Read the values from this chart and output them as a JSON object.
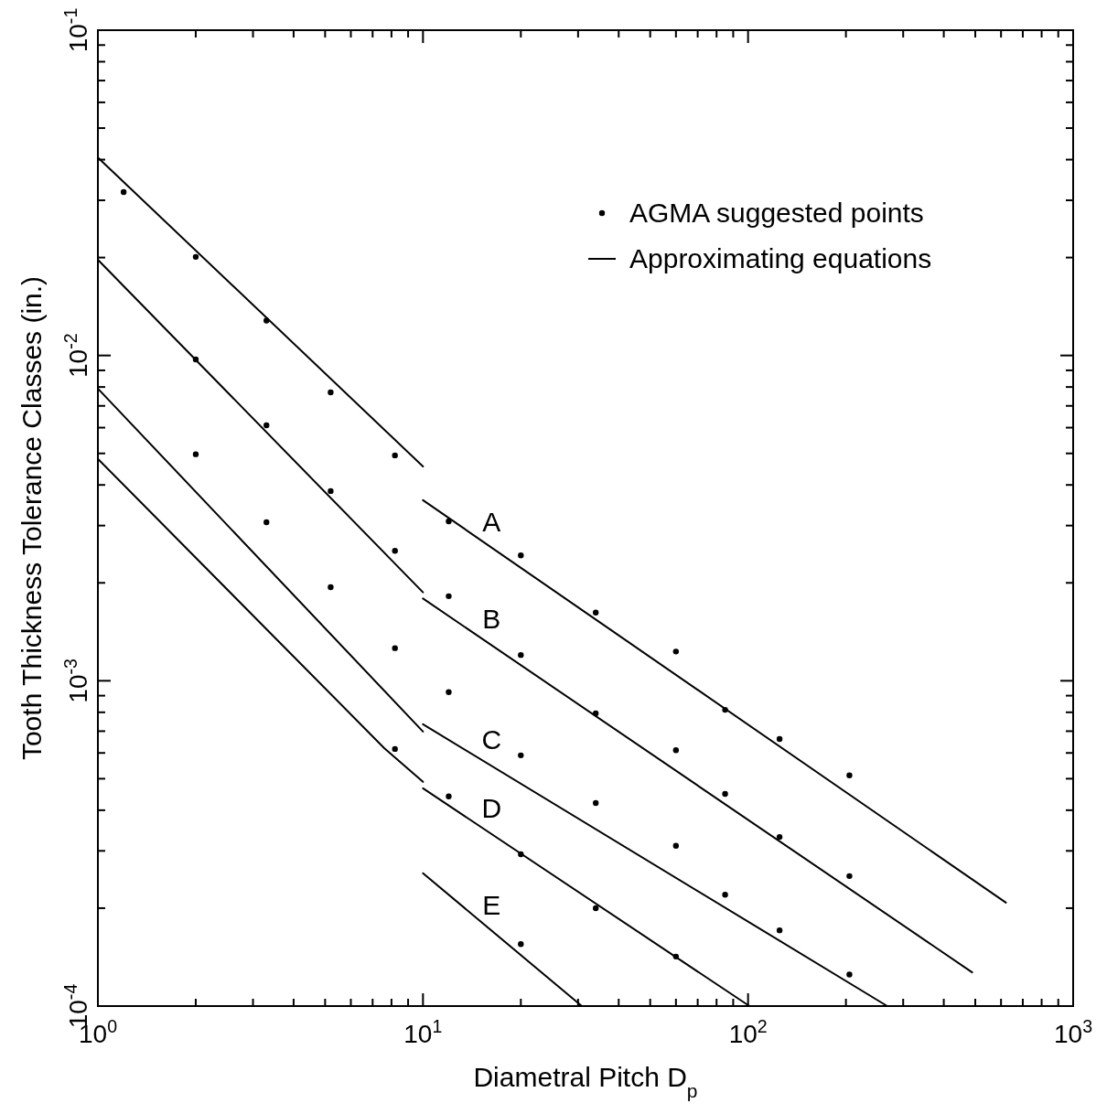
{
  "chart_data": {
    "type": "scatter",
    "xlabel": "Diametral Pitch D$_{p}$",
    "ylabel": "Tooth Thickness Tolerance Classes (in.)",
    "log": "xy",
    "grid": false,
    "legend": "top right",
    "xlim": [
      1,
      1000
    ],
    "ylim": [
      0.0001,
      0.1
    ],
    "xticks": [
      {
        "value": 1,
        "label": "10$^{0}$"
      },
      {
        "value": 2,
        "label": null
      },
      {
        "value": 3,
        "label": null
      },
      {
        "value": 4,
        "label": null
      },
      {
        "value": 5,
        "label": null
      },
      {
        "value": 6,
        "label": null
      },
      {
        "value": 7,
        "label": null
      },
      {
        "value": 8,
        "label": null
      },
      {
        "value": 9,
        "label": null
      },
      {
        "value": 10,
        "label": "10$^{1}$"
      },
      {
        "value": 20,
        "label": null
      },
      {
        "value": 30,
        "label": null
      },
      {
        "value": 40,
        "label": null
      },
      {
        "value": 50,
        "label": null
      },
      {
        "value": 60,
        "label": null
      },
      {
        "value": 70,
        "label": null
      },
      {
        "value": 80,
        "label": null
      },
      {
        "value": 90,
        "label": null
      },
      {
        "value": 100,
        "label": "10$^{2}$"
      },
      {
        "value": 200,
        "label": null
      },
      {
        "value": 300,
        "label": null
      },
      {
        "value": 400,
        "label": null
      },
      {
        "value": 500,
        "label": null
      },
      {
        "value": 600,
        "label": null
      },
      {
        "value": 700,
        "label": null
      },
      {
        "value": 800,
        "label": null
      },
      {
        "value": 900,
        "label": null
      },
      {
        "value": 1000,
        "label": "10$^{3}$"
      }
    ],
    "yticks": [
      {
        "value": 0.0001,
        "label": "10$^{-4}$"
      },
      {
        "value": 0.0002,
        "label": null
      },
      {
        "value": 0.0003,
        "label": null
      },
      {
        "value": 0.0004,
        "label": null
      },
      {
        "value": 0.0005,
        "label": null
      },
      {
        "value": 0.0006,
        "label": null
      },
      {
        "value": 0.0007,
        "label": null
      },
      {
        "value": 0.0008,
        "label": null
      },
      {
        "value": 0.0009,
        "label": null
      },
      {
        "value": 0.001,
        "label": "10$^{-3}$"
      },
      {
        "value": 0.002,
        "label": null
      },
      {
        "value": 0.003,
        "label": null
      },
      {
        "value": 0.004,
        "label": null
      },
      {
        "value": 0.005,
        "label": null
      },
      {
        "value": 0.006,
        "label": null
      },
      {
        "value": 0.007,
        "label": null
      },
      {
        "value": 0.008,
        "label": null
      },
      {
        "value": 0.009,
        "label": null
      },
      {
        "value": 0.01,
        "label": "10$^{-2}$"
      },
      {
        "value": 0.02,
        "label": null
      },
      {
        "value": 0.03,
        "label": null
      },
      {
        "value": 0.04,
        "label": null
      },
      {
        "value": 0.05,
        "label": null
      },
      {
        "value": 0.06,
        "label": null
      },
      {
        "value": 0.07,
        "label": null
      },
      {
        "value": 0.08,
        "label": null
      },
      {
        "value": 0.09,
        "label": null
      },
      {
        "value": 0.1,
        "label": "10$^{-1}$"
      }
    ],
    "series": [
      {
        "name": "AGMA suggested points",
        "marker": "circle",
        "color": "#000000",
        "x": [
          1.2,
          2,
          3.3,
          5.2,
          8.2,
          12,
          20,
          34,
          60,
          85,
          125,
          205,
          2,
          3.3,
          5.2,
          8.2,
          12,
          20,
          34,
          60,
          85,
          125,
          205,
          2,
          3.3,
          5.2,
          8.2,
          12,
          20,
          34,
          60,
          85,
          125,
          205,
          8.2,
          12,
          20,
          34,
          60,
          20
        ],
        "values": [
          0.0318,
          0.0201,
          0.0128,
          0.0077,
          0.00493,
          0.00309,
          0.00243,
          0.00162,
          0.00123,
          0.000814,
          0.000662,
          0.000512,
          0.00972,
          0.0061,
          0.00383,
          0.00251,
          0.00182,
          0.0012,
          0.000794,
          0.000612,
          0.000449,
          0.000331,
          0.000251,
          0.00497,
          0.00307,
          0.00194,
          0.00126,
          0.000923,
          0.00059,
          0.000421,
          0.000311,
          0.00022,
          0.000171,
          0.000125,
          0.000617,
          0.000441,
          0.000293,
          0.0002,
          0.000142,
          0.000155
        ]
      },
      {
        "name": "Approximating equations",
        "type": "line",
        "color": "#000000",
        "x": [
          1,
          10
        ],
        "values": [
          0.0406,
          0.00456
        ]
      },
      {
        "type": "line",
        "color": "#000000",
        "x": [
          1,
          10
        ],
        "values": [
          0.0197,
          0.00187
        ]
      },
      {
        "type": "line",
        "color": "#000000",
        "x": [
          1,
          10
        ],
        "values": [
          0.00791,
          0.000698
        ]
      },
      {
        "type": "line",
        "color": "#000000",
        "x": [
          1,
          7.6,
          10
        ],
        "values": [
          0.00481,
          0.000621,
          0.000489
        ]
      },
      {
        "type": "line",
        "color": "#000000",
        "x": [
          10,
          621
        ],
        "values": [
          0.00359,
          0.000208
        ]
      },
      {
        "type": "line",
        "color": "#000000",
        "x": [
          10,
          489
        ],
        "values": [
          0.00179,
          0.000127
        ]
      },
      {
        "type": "line",
        "color": "#000000",
        "x": [
          10,
          268
        ],
        "values": [
          0.000735,
          0.0001
        ]
      },
      {
        "type": "line",
        "color": "#000000",
        "x": [
          10,
          101
        ],
        "values": [
          0.000467,
          0.0001
        ]
      },
      {
        "type": "line",
        "color": "#000000",
        "x": [
          10,
          30.8
        ],
        "values": [
          0.000256,
          0.0001
        ]
      }
    ],
    "line_style": "solid",
    "annotations": [
      "A",
      "B",
      "C",
      "D",
      "E"
    ]
  }
}
